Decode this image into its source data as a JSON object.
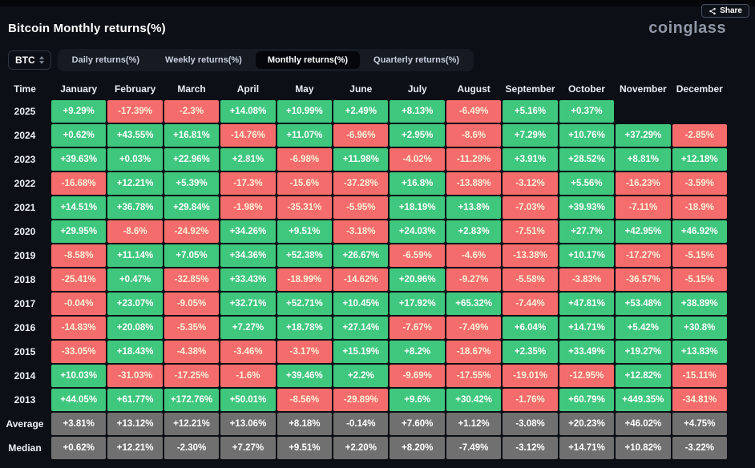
{
  "header": {
    "title": "Bitcoin Monthly returns(%)",
    "share_label": "Share",
    "logo": "coinglass"
  },
  "controls": {
    "symbol": "BTC",
    "tabs": [
      {
        "label": "Daily returns(%)",
        "active": false
      },
      {
        "label": "Weekly returns(%)",
        "active": false
      },
      {
        "label": "Monthly returns(%)",
        "active": true
      },
      {
        "label": "Quarterly returns(%)",
        "active": false
      }
    ]
  },
  "table": {
    "columns": [
      "Time",
      "January",
      "February",
      "March",
      "April",
      "May",
      "June",
      "July",
      "August",
      "September",
      "October",
      "November",
      "December"
    ],
    "rows": [
      {
        "label": "2025",
        "type": "year",
        "values": [
          "+9.29%",
          "-17.39%",
          "-2.3%",
          "+14.08%",
          "+10.99%",
          "+2.49%",
          "+8.13%",
          "-6.49%",
          "+5.16%",
          "+0.37%",
          "",
          ""
        ]
      },
      {
        "label": "2024",
        "type": "year",
        "values": [
          "+0.62%",
          "+43.55%",
          "+16.81%",
          "-14.76%",
          "+11.07%",
          "-6.96%",
          "+2.95%",
          "-8.6%",
          "+7.29%",
          "+10.76%",
          "+37.29%",
          "-2.85%"
        ]
      },
      {
        "label": "2023",
        "type": "year",
        "values": [
          "+39.63%",
          "+0.03%",
          "+22.96%",
          "+2.81%",
          "-6.98%",
          "+11.98%",
          "-4.02%",
          "-11.29%",
          "+3.91%",
          "+28.52%",
          "+8.81%",
          "+12.18%"
        ]
      },
      {
        "label": "2022",
        "type": "year",
        "values": [
          "-16.68%",
          "+12.21%",
          "+5.39%",
          "-17.3%",
          "-15.6%",
          "-37.28%",
          "+16.8%",
          "-13.88%",
          "-3.12%",
          "+5.56%",
          "-16.23%",
          "-3.59%"
        ]
      },
      {
        "label": "2021",
        "type": "year",
        "values": [
          "+14.51%",
          "+36.78%",
          "+29.84%",
          "-1.98%",
          "-35.31%",
          "-5.95%",
          "+18.19%",
          "+13.8%",
          "-7.03%",
          "+39.93%",
          "-7.11%",
          "-18.9%"
        ]
      },
      {
        "label": "2020",
        "type": "year",
        "values": [
          "+29.95%",
          "-8.6%",
          "-24.92%",
          "+34.26%",
          "+9.51%",
          "-3.18%",
          "+24.03%",
          "+2.83%",
          "-7.51%",
          "+27.7%",
          "+42.95%",
          "+46.92%"
        ]
      },
      {
        "label": "2019",
        "type": "year",
        "values": [
          "-8.58%",
          "+11.14%",
          "+7.05%",
          "+34.36%",
          "+52.38%",
          "+26.67%",
          "-6.59%",
          "-4.6%",
          "-13.38%",
          "+10.17%",
          "-17.27%",
          "-5.15%"
        ]
      },
      {
        "label": "2018",
        "type": "year",
        "values": [
          "-25.41%",
          "+0.47%",
          "-32.85%",
          "+33.43%",
          "-18.99%",
          "-14.62%",
          "+20.96%",
          "-9.27%",
          "-5.58%",
          "-3.83%",
          "-36.57%",
          "-5.15%"
        ]
      },
      {
        "label": "2017",
        "type": "year",
        "values": [
          "-0.04%",
          "+23.07%",
          "-9.05%",
          "+32.71%",
          "+52.71%",
          "+10.45%",
          "+17.92%",
          "+65.32%",
          "-7.44%",
          "+47.81%",
          "+53.48%",
          "+38.89%"
        ]
      },
      {
        "label": "2016",
        "type": "year",
        "values": [
          "-14.83%",
          "+20.08%",
          "-5.35%",
          "+7.27%",
          "+18.78%",
          "+27.14%",
          "-7.67%",
          "-7.49%",
          "+6.04%",
          "+14.71%",
          "+5.42%",
          "+30.8%"
        ]
      },
      {
        "label": "2015",
        "type": "year",
        "values": [
          "-33.05%",
          "+18.43%",
          "-4.38%",
          "-3.46%",
          "-3.17%",
          "+15.19%",
          "+8.2%",
          "-18.67%",
          "+2.35%",
          "+33.49%",
          "+19.27%",
          "+13.83%"
        ]
      },
      {
        "label": "2014",
        "type": "year",
        "values": [
          "+10.03%",
          "-31.03%",
          "-17.25%",
          "-1.6%",
          "+39.46%",
          "+2.2%",
          "-9.69%",
          "-17.55%",
          "-19.01%",
          "-12.95%",
          "+12.82%",
          "-15.11%"
        ]
      },
      {
        "label": "2013",
        "type": "year",
        "values": [
          "+44.05%",
          "+61.77%",
          "+172.76%",
          "+50.01%",
          "-8.56%",
          "-29.89%",
          "+9.6%",
          "+30.42%",
          "-1.76%",
          "+60.79%",
          "+449.35%",
          "-34.81%"
        ]
      },
      {
        "label": "Average",
        "type": "summary",
        "values": [
          "+3.81%",
          "+13.12%",
          "+12.21%",
          "+13.06%",
          "+8.18%",
          "-0.14%",
          "+7.60%",
          "+1.12%",
          "-3.08%",
          "+20.23%",
          "+46.02%",
          "+4.75%"
        ]
      },
      {
        "label": "Median",
        "type": "summary",
        "values": [
          "+0.62%",
          "+12.21%",
          "-2.30%",
          "+7.27%",
          "+9.51%",
          "+2.20%",
          "+8.20%",
          "-7.49%",
          "-3.12%",
          "+14.71%",
          "+10.82%",
          "-3.22%"
        ]
      }
    ]
  },
  "colors": {
    "positive": "#3fc77e",
    "negative": "#f56c6c",
    "summary": "#707070"
  }
}
